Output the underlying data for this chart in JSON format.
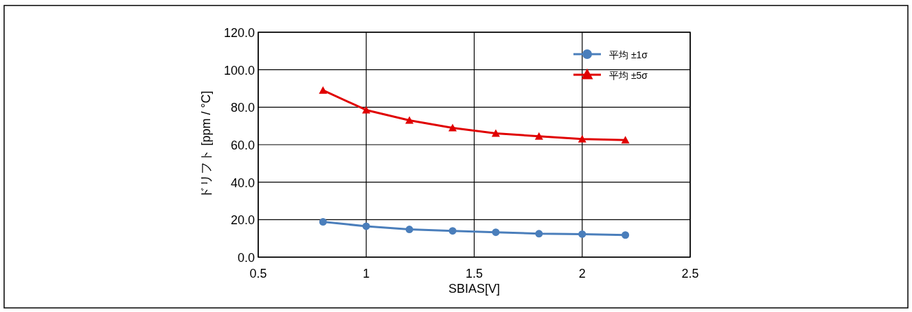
{
  "chart_data": {
    "type": "line",
    "xlabel": "SBIAS[V]",
    "ylabel": "ドリフト [ppm / °C]",
    "x": [
      0.8,
      1.0,
      1.2,
      1.4,
      1.6,
      1.8,
      2.0,
      2.2
    ],
    "series": [
      {
        "name": "平均 ±1σ",
        "color": "#4a7ebb",
        "marker": "circle",
        "values": [
          18.8,
          16.5,
          14.8,
          14.0,
          13.3,
          12.5,
          12.3,
          11.8
        ]
      },
      {
        "name": "平均 ±5σ",
        "color": "#e00000",
        "marker": "triangle",
        "values": [
          89.0,
          78.5,
          73.0,
          69.0,
          66.0,
          64.5,
          63.0,
          62.5
        ]
      }
    ],
    "xlim": [
      0.5,
      2.5
    ],
    "xticks": [
      0.5,
      1,
      1.5,
      2,
      2.5
    ],
    "ylim": [
      0,
      120
    ],
    "yticks": [
      {
        "value": 0,
        "label": "0.0"
      },
      {
        "value": 20,
        "label": "20.0"
      },
      {
        "value": 40,
        "label": "40.0"
      },
      {
        "value": 60,
        "label": "60.0"
      },
      {
        "value": 80,
        "label": "80.0"
      },
      {
        "value": 100,
        "label": "100.0"
      },
      {
        "value": 120,
        "label": "120.0"
      }
    ],
    "grid": true,
    "legend": "top right",
    "line_style": "solid"
  }
}
